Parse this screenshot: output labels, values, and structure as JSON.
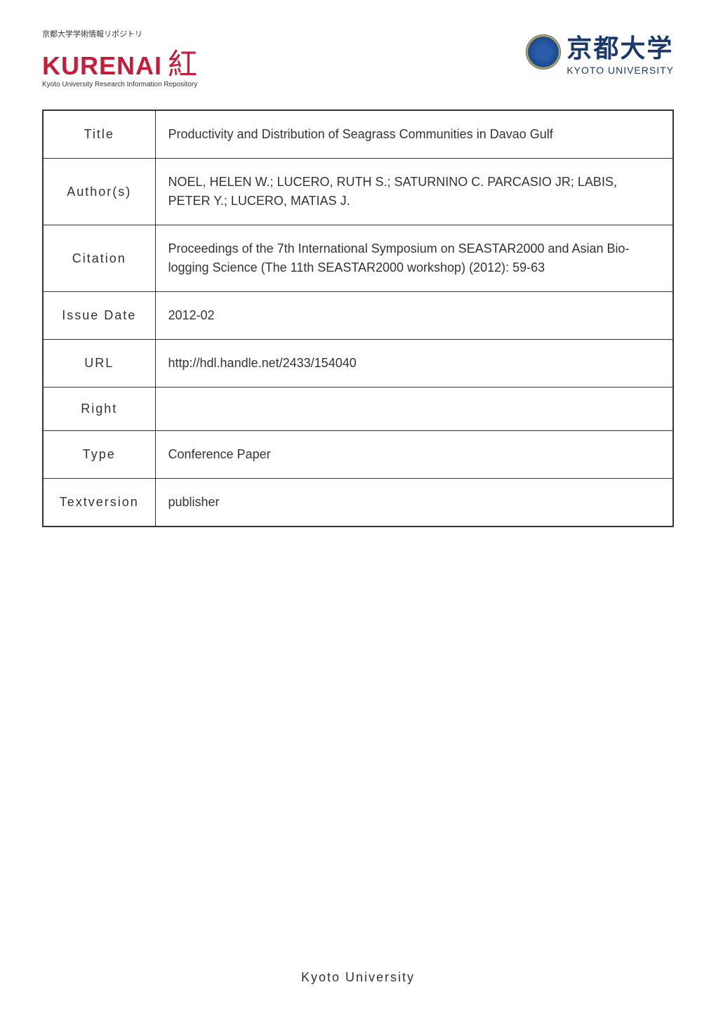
{
  "header": {
    "kurenai_jp": "京都大学学術情報リポジトリ",
    "kurenai_main": "KURENAI",
    "kurenai_kanji": "紅",
    "kurenai_sub": "Kyoto University Research Information Repository",
    "kyoto_jp": "京都大学",
    "kyoto_en": "KYOTO UNIVERSITY"
  },
  "metadata": {
    "rows": [
      {
        "label": "Title",
        "value": "Productivity and Distribution of Seagrass Communities in Davao Gulf"
      },
      {
        "label": "Author(s)",
        "value": "NOEL, HELEN W.; LUCERO, RUTH S.; SATURNINO C. PARCASIO JR; LABIS, PETER Y.; LUCERO, MATIAS J."
      },
      {
        "label": "Citation",
        "value": "Proceedings of the 7th International Symposium on SEASTAR2000 and Asian Bio-logging Science (The 11th SEASTAR2000 workshop) (2012): 59-63"
      },
      {
        "label": "Issue Date",
        "value": "2012-02"
      },
      {
        "label": "URL",
        "value": "http://hdl.handle.net/2433/154040"
      },
      {
        "label": "Right",
        "value": ""
      },
      {
        "label": "Type",
        "value": "Conference Paper"
      },
      {
        "label": "Textversion",
        "value": "publisher"
      }
    ]
  },
  "footer": {
    "text": "Kyoto University"
  },
  "styling": {
    "primary_red": "#c41e3a",
    "primary_blue": "#1a3a6e",
    "border_color": "#333333",
    "background": "#ffffff",
    "label_width": 160,
    "cell_padding": 20,
    "body_fontsize": 18,
    "header_fontsize_main": 36,
    "header_fontsize_sub": 10
  }
}
